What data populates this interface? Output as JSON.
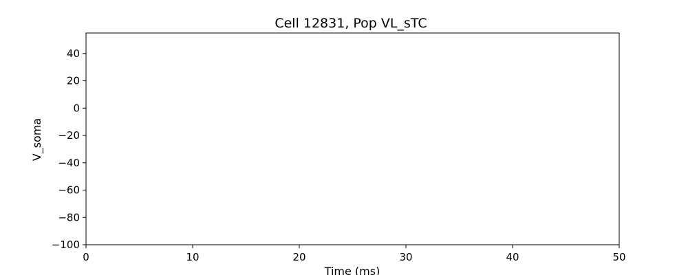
{
  "chart_data": {
    "type": "line",
    "title": "Cell 12831, Pop VL_sTC",
    "xlabel": "Time (ms)",
    "ylabel": "V_soma",
    "xlim": [
      0,
      50
    ],
    "ylim": [
      -100,
      55
    ],
    "x_ticks": [
      0,
      10,
      20,
      30,
      40,
      50
    ],
    "y_ticks": [
      -100,
      -80,
      -60,
      -40,
      -20,
      0,
      20,
      40
    ],
    "x_tick_labels": [
      "0",
      "10",
      "20",
      "30",
      "40",
      "50"
    ],
    "y_tick_labels": [
      "−100",
      "−80",
      "−60",
      "−40",
      "−20",
      "0",
      "20",
      "40"
    ],
    "grid": false,
    "series": []
  }
}
